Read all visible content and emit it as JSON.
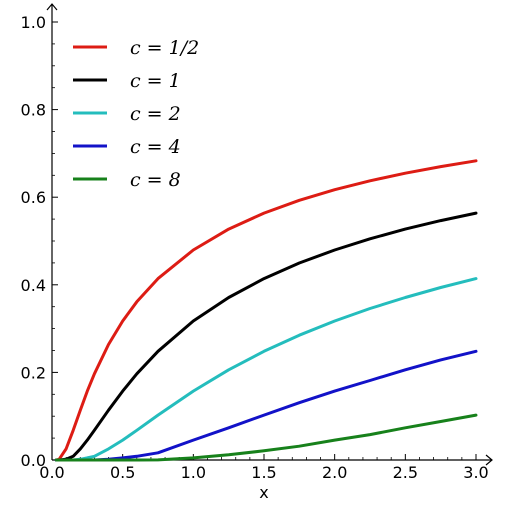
{
  "chart_data": {
    "type": "line",
    "title": "",
    "xlabel": "x",
    "ylabel": "",
    "xlim": [
      0.0,
      3.0
    ],
    "ylim": [
      0.0,
      1.0
    ],
    "x_ticks": [
      0.0,
      0.5,
      1.0,
      1.5,
      2.0,
      2.5,
      3.0
    ],
    "x_tick_labels": [
      "0.0",
      "0.5",
      "1.0",
      "1.5",
      "2.0",
      "2.5",
      "3.0"
    ],
    "y_ticks": [
      0.0,
      0.2,
      0.4,
      0.6,
      0.8,
      1.0
    ],
    "y_tick_labels": [
      "0.0",
      "0.2",
      "0.4",
      "0.6",
      "0.8",
      "1.0"
    ],
    "grid": false,
    "legend_position": "top-left",
    "x": [
      0.05,
      0.1,
      0.15,
      0.2,
      0.25,
      0.3,
      0.4,
      0.5,
      0.6,
      0.75,
      1.0,
      1.25,
      1.5,
      1.75,
      2.0,
      2.25,
      2.5,
      2.75,
      3.0
    ],
    "series": [
      {
        "name": "c=1/2",
        "color": "#dd1c14",
        "values": [
          0.0016,
          0.0253,
          0.0679,
          0.1138,
          0.1573,
          0.1967,
          0.2636,
          0.3173,
          0.3613,
          0.4142,
          0.4795,
          0.5271,
          0.5637,
          0.593,
          0.6171,
          0.6374,
          0.6547,
          0.6698,
          0.6831
        ]
      },
      {
        "name": "c=1",
        "color": "#000000",
        "values": [
          0.0,
          0.0016,
          0.0085,
          0.0253,
          0.0455,
          0.0679,
          0.1138,
          0.1573,
          0.1967,
          0.2482,
          0.3173,
          0.3711,
          0.4142,
          0.4497,
          0.4795,
          0.505,
          0.5271,
          0.5465,
          0.5637
        ]
      },
      {
        "name": "c=2",
        "color": "#24bdbd",
        "values": [
          0.0,
          0.0,
          0.0,
          0.0016,
          0.0047,
          0.0085,
          0.0253,
          0.0455,
          0.0679,
          0.1025,
          0.1573,
          0.2059,
          0.2482,
          0.285,
          0.3173,
          0.3458,
          0.3711,
          0.3938,
          0.4142
        ]
      },
      {
        "name": "c=4",
        "color": "#1212c8",
        "values": [
          0.0,
          0.0,
          0.0,
          0.0,
          0.0,
          0.0,
          0.0016,
          0.0047,
          0.0085,
          0.0164,
          0.0455,
          0.0736,
          0.1025,
          0.1309,
          0.1573,
          0.1815,
          0.2059,
          0.2285,
          0.2482
        ]
      },
      {
        "name": "c=8",
        "color": "#17811b",
        "values": [
          0.0,
          0.0,
          0.0,
          0.0,
          0.0,
          0.0,
          0.0,
          0.0,
          0.0,
          0.0003,
          0.0047,
          0.0119,
          0.0209,
          0.0316,
          0.0455,
          0.0581,
          0.0736,
          0.088,
          0.1025
        ]
      }
    ],
    "legend_labels": [
      "c = 1/2",
      "c = 1",
      "c = 2",
      "c = 4",
      "c = 8"
    ]
  }
}
